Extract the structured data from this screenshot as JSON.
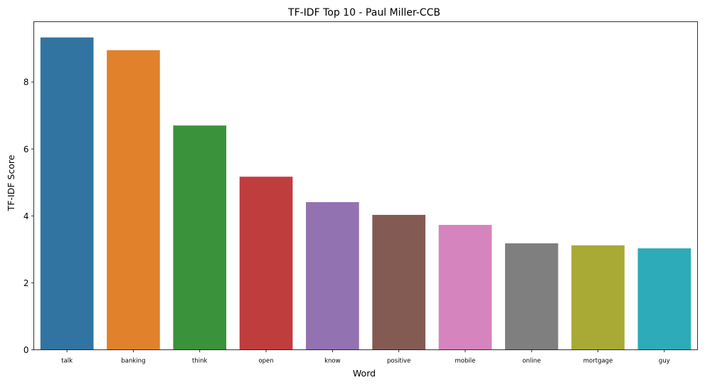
{
  "chart_data": {
    "type": "bar",
    "title": "TF-IDF Top 10 - Paul Miller-CCB",
    "xlabel": "Word",
    "ylabel": "TF-IDF Score",
    "categories": [
      "talk",
      "banking",
      "think",
      "open",
      "know",
      "positive",
      "mobile",
      "online",
      "mortgage",
      "guy"
    ],
    "values": [
      9.33,
      8.95,
      6.7,
      5.17,
      4.41,
      4.03,
      3.73,
      3.18,
      3.12,
      3.03
    ],
    "colors": [
      "#3274a1",
      "#e1812c",
      "#3a923a",
      "#c03d3e",
      "#9372b2",
      "#845b53",
      "#d684bd",
      "#7f7f7f",
      "#a9aa35",
      "#2eabb8"
    ],
    "yticks": [
      "0",
      "2",
      "4",
      "6",
      "8"
    ],
    "ylim": [
      0,
      9.8
    ],
    "grid": false,
    "legend": false
  }
}
